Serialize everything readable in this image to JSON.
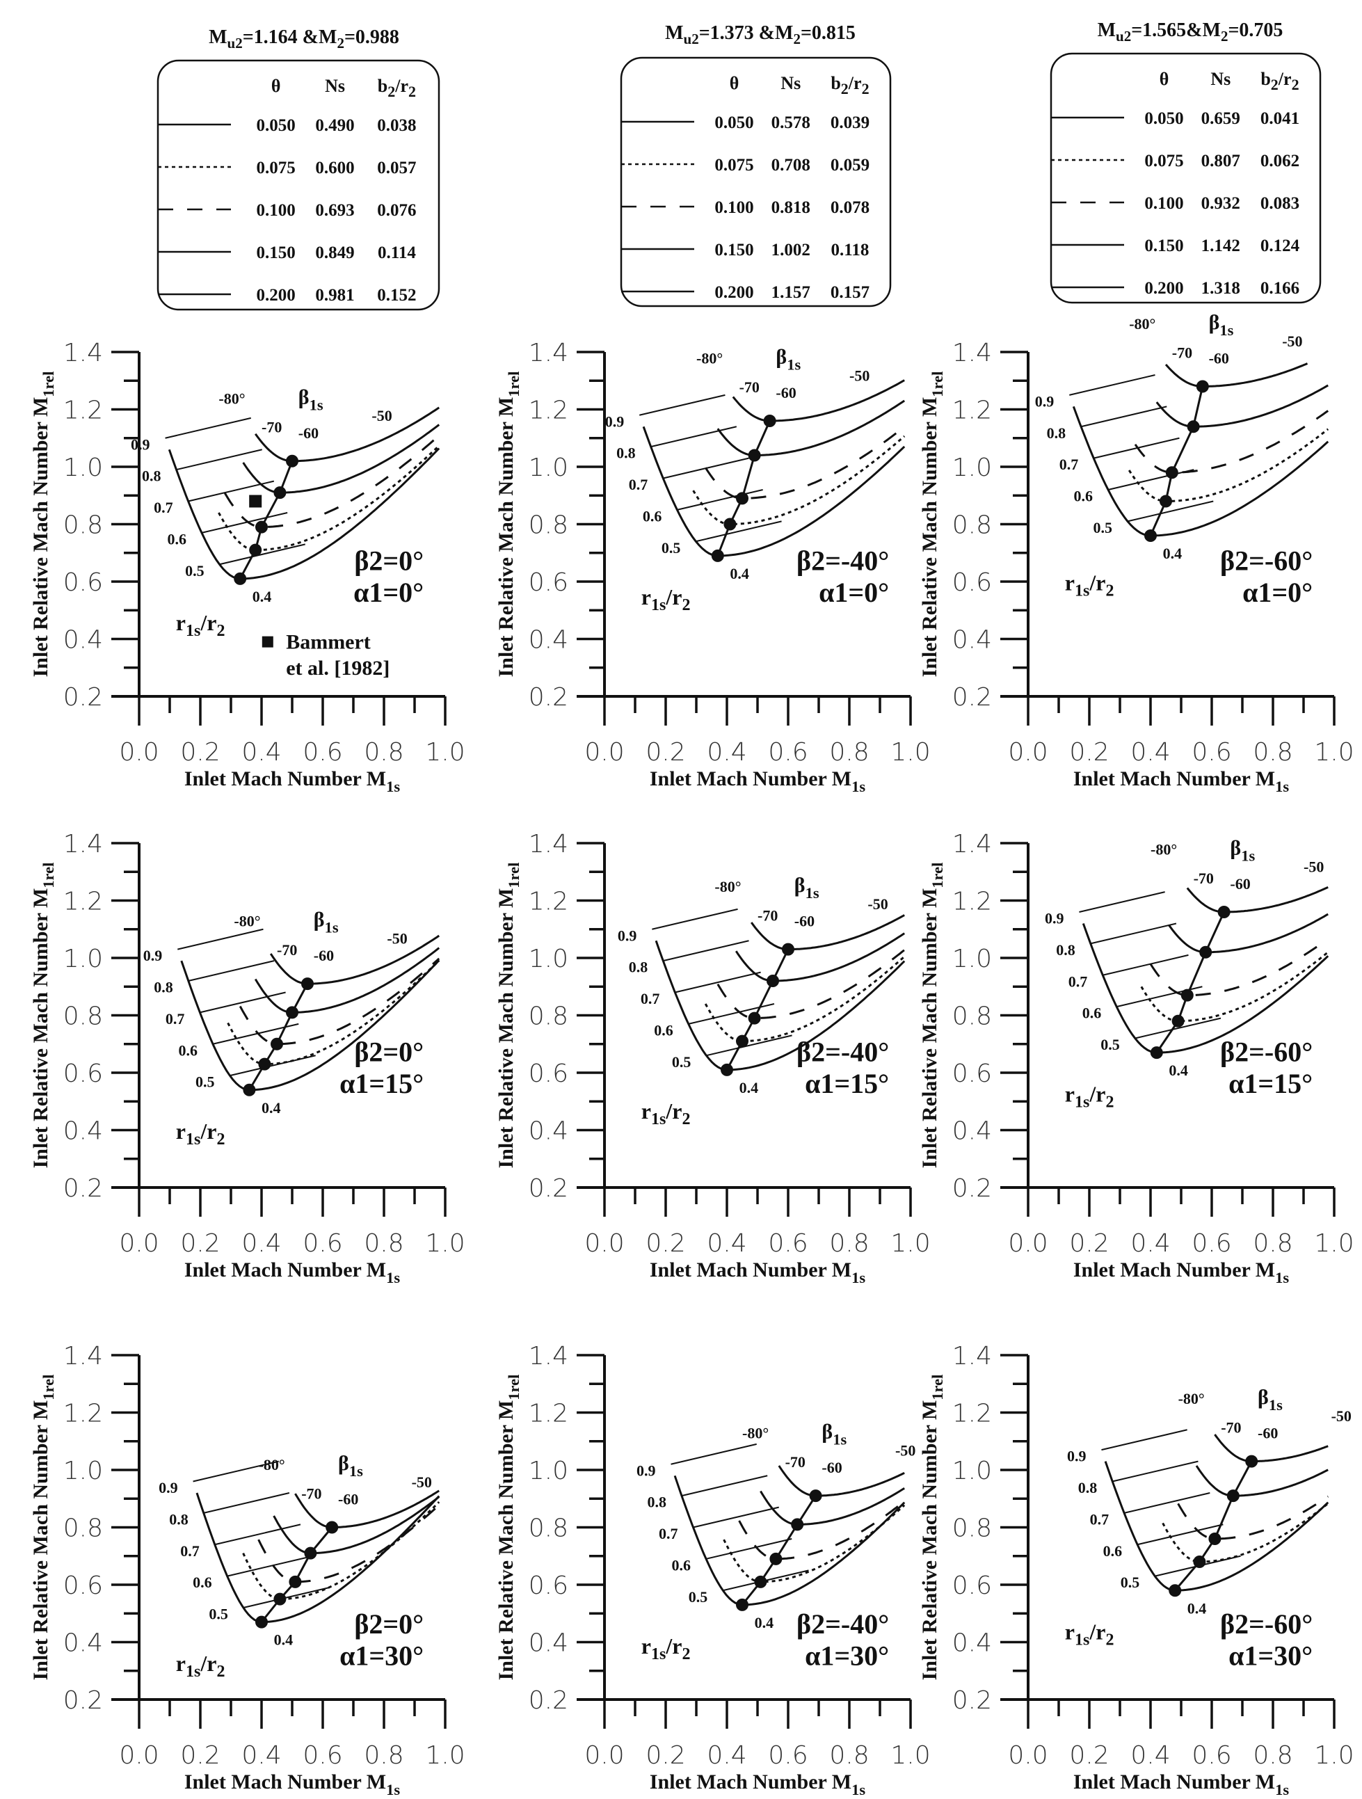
{
  "legends": [
    {
      "title": [
        "M",
        "u2",
        "=1.164 &M",
        "2",
        "=0.988"
      ],
      "headers": {
        "theta": "θ",
        "ns": "Ns",
        "b": "b",
        "b_sub": "2",
        "r": "/r",
        "r_sub": "2"
      },
      "rows": [
        {
          "theta": "0.050",
          "ns": "0.490",
          "b2r2": "0.038",
          "style": "solid"
        },
        {
          "theta": "0.075",
          "ns": "0.600",
          "b2r2": "0.057",
          "style": "dotted"
        },
        {
          "theta": "0.100",
          "ns": "0.693",
          "b2r2": "0.076",
          "style": "dashed"
        },
        {
          "theta": "0.150",
          "ns": "0.849",
          "b2r2": "0.114",
          "style": "solid"
        },
        {
          "theta": "0.200",
          "ns": "0.981",
          "b2r2": "0.152",
          "style": "solid"
        }
      ]
    },
    {
      "title": [
        "M",
        "u2",
        "=1.373 &M",
        "2",
        "=0.815"
      ],
      "headers": {
        "theta": "θ",
        "ns": "Ns",
        "b": "b",
        "b_sub": "2",
        "r": "/r",
        "r_sub": "2"
      },
      "rows": [
        {
          "theta": "0.050",
          "ns": "0.578",
          "b2r2": "0.039",
          "style": "solid"
        },
        {
          "theta": "0.075",
          "ns": "0.708",
          "b2r2": "0.059",
          "style": "dotted"
        },
        {
          "theta": "0.100",
          "ns": "0.818",
          "b2r2": "0.078",
          "style": "dashed"
        },
        {
          "theta": "0.150",
          "ns": "1.002",
          "b2r2": "0.118",
          "style": "solid"
        },
        {
          "theta": "0.200",
          "ns": "1.157",
          "b2r2": "0.157",
          "style": "solid"
        }
      ]
    },
    {
      "title": [
        "M",
        "u2",
        "=1.565&M",
        "2",
        "=0.705"
      ],
      "headers": {
        "theta": "θ",
        "ns": "Ns",
        "b": "b",
        "b_sub": "2",
        "r": "/r",
        "r_sub": "2"
      },
      "rows": [
        {
          "theta": "0.050",
          "ns": "0.659",
          "b2r2": "0.041",
          "style": "solid"
        },
        {
          "theta": "0.075",
          "ns": "0.807",
          "b2r2": "0.062",
          "style": "dotted"
        },
        {
          "theta": "0.100",
          "ns": "0.932",
          "b2r2": "0.083",
          "style": "dashed"
        },
        {
          "theta": "0.150",
          "ns": "1.142",
          "b2r2": "0.124",
          "style": "solid"
        },
        {
          "theta": "0.200",
          "ns": "1.318",
          "b2r2": "0.166",
          "style": "solid"
        }
      ]
    }
  ],
  "common": {
    "xlabel": "Inlet Mach Number M",
    "xlabel_sub": "1s",
    "ylabel": "Inlet Relative Mach Number M",
    "ylabel_sub": "1rel",
    "xticks": [
      "0.0",
      "0.2",
      "0.4",
      "0.6",
      "0.8",
      "1.0"
    ],
    "yticks": [
      "0.2",
      "0.4",
      "0.6",
      "0.8",
      "1.0",
      "1.2",
      "1.4"
    ],
    "r_labels": [
      "0.9",
      "0.8",
      "0.7",
      "0.6",
      "0.5",
      "0.4"
    ],
    "beta_labels": [
      "-80°",
      "-70",
      "-60",
      "-50"
    ],
    "beta1s": "β",
    "beta1s_sub": "1s",
    "ratio": "r",
    "ratio_sub1": "1s",
    "ratio_mid": "/r",
    "ratio_sub2": "2",
    "bammert": [
      "Bammert",
      "et al. [1982]"
    ]
  },
  "chart_data": [
    {
      "type": "line",
      "beta2": "β2=0°",
      "alpha1": "α1=0°",
      "xlim": [
        0,
        1
      ],
      "ylim": [
        0.2,
        1.4
      ],
      "theta_styles": [
        "solid",
        "dotted",
        "dashed",
        "solid",
        "solid"
      ],
      "optimum": [
        [
          0.33,
          0.61
        ],
        [
          0.38,
          0.71
        ],
        [
          0.4,
          0.79
        ],
        [
          0.46,
          0.91
        ],
        [
          0.5,
          1.02
        ]
      ],
      "experiment": [
        0.38,
        0.88
      ]
    },
    {
      "type": "line",
      "beta2": "β2=-40°",
      "alpha1": "α1=0°",
      "xlim": [
        0,
        1
      ],
      "ylim": [
        0.2,
        1.4
      ],
      "theta_styles": [
        "solid",
        "dotted",
        "dashed",
        "solid",
        "solid"
      ],
      "optimum": [
        [
          0.37,
          0.69
        ],
        [
          0.41,
          0.8
        ],
        [
          0.45,
          0.89
        ],
        [
          0.49,
          1.04
        ],
        [
          0.54,
          1.16
        ]
      ]
    },
    {
      "type": "line",
      "beta2": "β2=-60°",
      "alpha1": "α1=0°",
      "xlim": [
        0,
        1
      ],
      "ylim": [
        0.2,
        1.4
      ],
      "theta_styles": [
        "solid",
        "dotted",
        "dashed",
        "solid",
        "solid"
      ],
      "optimum": [
        [
          0.4,
          0.76
        ],
        [
          0.45,
          0.88
        ],
        [
          0.47,
          0.98
        ],
        [
          0.54,
          1.14
        ],
        [
          0.57,
          1.28
        ]
      ]
    },
    {
      "type": "line",
      "beta2": "β2=0°",
      "alpha1": "α1=15°",
      "xlim": [
        0,
        1
      ],
      "ylim": [
        0.2,
        1.4
      ],
      "theta_styles": [
        "solid",
        "dotted",
        "dashed",
        "solid",
        "solid"
      ],
      "optimum": [
        [
          0.36,
          0.54
        ],
        [
          0.41,
          0.63
        ],
        [
          0.45,
          0.7
        ],
        [
          0.5,
          0.81
        ],
        [
          0.55,
          0.91
        ]
      ]
    },
    {
      "type": "line",
      "beta2": "β2=-40°",
      "alpha1": "α1=15°",
      "xlim": [
        0,
        1
      ],
      "ylim": [
        0.2,
        1.4
      ],
      "theta_styles": [
        "solid",
        "dotted",
        "dashed",
        "solid",
        "solid"
      ],
      "optimum": [
        [
          0.4,
          0.61
        ],
        [
          0.45,
          0.71
        ],
        [
          0.49,
          0.79
        ],
        [
          0.55,
          0.92
        ],
        [
          0.6,
          1.03
        ]
      ]
    },
    {
      "type": "line",
      "beta2": "β2=-60°",
      "alpha1": "α1=15°",
      "xlim": [
        0,
        1
      ],
      "ylim": [
        0.2,
        1.4
      ],
      "theta_styles": [
        "solid",
        "dotted",
        "dashed",
        "solid",
        "solid"
      ],
      "optimum": [
        [
          0.42,
          0.67
        ],
        [
          0.49,
          0.78
        ],
        [
          0.52,
          0.87
        ],
        [
          0.58,
          1.02
        ],
        [
          0.64,
          1.16
        ]
      ]
    },
    {
      "type": "line",
      "beta2": "β2=0°",
      "alpha1": "α1=30°",
      "xlim": [
        0,
        1
      ],
      "ylim": [
        0.2,
        1.4
      ],
      "theta_styles": [
        "solid",
        "dotted",
        "dashed",
        "solid",
        "solid"
      ],
      "optimum": [
        [
          0.4,
          0.47
        ],
        [
          0.46,
          0.55
        ],
        [
          0.51,
          0.61
        ],
        [
          0.56,
          0.71
        ],
        [
          0.63,
          0.8
        ]
      ]
    },
    {
      "type": "line",
      "beta2": "β2=-40°",
      "alpha1": "α1=30°",
      "xlim": [
        0,
        1
      ],
      "ylim": [
        0.2,
        1.4
      ],
      "theta_styles": [
        "solid",
        "dotted",
        "dashed",
        "solid",
        "solid"
      ],
      "optimum": [
        [
          0.45,
          0.53
        ],
        [
          0.51,
          0.61
        ],
        [
          0.56,
          0.69
        ],
        [
          0.63,
          0.81
        ],
        [
          0.69,
          0.91
        ]
      ]
    },
    {
      "type": "line",
      "beta2": "β2=-60°",
      "alpha1": "α1=30°",
      "xlim": [
        0,
        1
      ],
      "ylim": [
        0.2,
        1.4
      ],
      "theta_styles": [
        "solid",
        "dotted",
        "dashed",
        "solid",
        "solid"
      ],
      "optimum": [
        [
          0.48,
          0.58
        ],
        [
          0.56,
          0.68
        ],
        [
          0.61,
          0.76
        ],
        [
          0.67,
          0.91
        ],
        [
          0.73,
          1.03
        ]
      ]
    }
  ]
}
